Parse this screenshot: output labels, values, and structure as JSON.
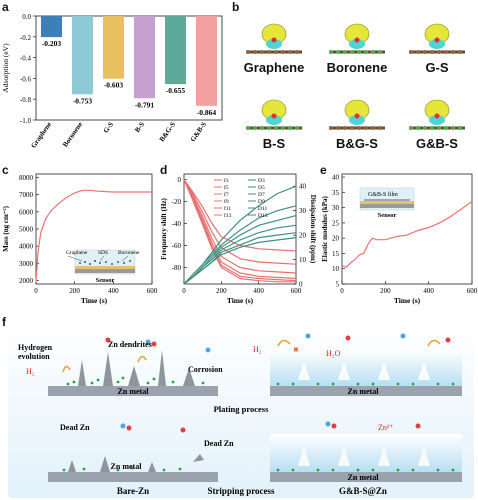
{
  "panels": {
    "a": "a",
    "b": "b",
    "c": "c",
    "d": "d",
    "e": "e",
    "f": "f"
  },
  "chart_data": [
    {
      "type": "bar",
      "categories": [
        "Graphene",
        "Boronene",
        "G-S",
        "B-S",
        "B&G-S",
        "G&B-S"
      ],
      "values": [
        -0.203,
        -0.753,
        -0.603,
        -0.791,
        -0.655,
        -0.864
      ],
      "value_labels": [
        "-0.203",
        "-0.753",
        "-0.603",
        "-0.791",
        "-0.655",
        "-0.864"
      ],
      "bar_colors": [
        "#3f7fb8",
        "#8ec9d6",
        "#e8c060",
        "#c6a0cf",
        "#5eaa98",
        "#f3a0a0"
      ],
      "ylabel": "Adsorption (eV)",
      "ylim": [
        0,
        -1.0
      ],
      "yticks": [
        "0.0",
        "-0.2",
        "-0.4",
        "-0.6",
        "-0.8",
        "-1.0"
      ]
    },
    {
      "type": "line",
      "xlabel": "Time (s)",
      "ylabel": "Mass (ng cm⁻²)",
      "xlim": [
        0,
        600
      ],
      "ylim": [
        1800,
        8200
      ],
      "xticks": [
        0,
        200,
        400,
        600
      ],
      "yticks": [
        2000,
        3000,
        4000,
        5000,
        6000,
        7000,
        8000
      ],
      "series": [
        {
          "x": [
            0,
            10,
            25,
            50,
            80,
            120,
            160,
            200,
            240,
            280,
            320,
            400,
            500,
            600
          ],
          "y": [
            1900,
            3600,
            4800,
            5600,
            6100,
            6500,
            6850,
            7100,
            7250,
            7250,
            7200,
            7150,
            7150,
            7150
          ],
          "color": "#f07070"
        }
      ]
    },
    {
      "type": "line",
      "xlabel": "Time (s)",
      "ylabel": "Frequency shift (Hz)",
      "y2label": "Dissipation shift (ppm)",
      "xlim": [
        0,
        600
      ],
      "ylim": [
        -95,
        5
      ],
      "y2lim": [
        0,
        45
      ],
      "xticks": [
        0,
        200,
        400,
        600
      ],
      "yticks": [
        0,
        -20,
        -40,
        -60,
        -80
      ],
      "y2ticks": [
        0,
        10,
        20,
        30,
        40
      ],
      "legend": [
        "f3",
        "D3",
        "f5",
        "D5",
        "f7",
        "D7",
        "f9",
        "D9",
        "f11",
        "D11",
        "f13",
        "D13"
      ],
      "series": [
        {
          "name": "f3",
          "axis": "left",
          "color": "#e87070",
          "x": [
            0,
            50,
            100,
            150,
            200,
            300,
            400,
            500,
            600
          ],
          "y": [
            0,
            -12,
            -25,
            -40,
            -52,
            -60,
            -63,
            -64,
            -65
          ]
        },
        {
          "name": "f5",
          "axis": "left",
          "color": "#e87070",
          "x": [
            0,
            50,
            100,
            150,
            200,
            300,
            400,
            500,
            600
          ],
          "y": [
            0,
            -14,
            -30,
            -48,
            -62,
            -72,
            -75,
            -76,
            -77
          ]
        },
        {
          "name": "f7",
          "axis": "left",
          "color": "#e87070",
          "x": [
            0,
            50,
            100,
            150,
            200,
            300,
            400,
            500,
            600
          ],
          "y": [
            0,
            -16,
            -34,
            -54,
            -70,
            -80,
            -83,
            -84,
            -85
          ]
        },
        {
          "name": "f9",
          "axis": "left",
          "color": "#e87070",
          "x": [
            0,
            50,
            100,
            150,
            200,
            300,
            400,
            500,
            600
          ],
          "y": [
            0,
            -18,
            -37,
            -58,
            -75,
            -85,
            -88,
            -89,
            -90
          ]
        },
        {
          "name": "f11",
          "axis": "left",
          "color": "#e87070",
          "x": [
            0,
            50,
            100,
            150,
            200,
            300,
            400,
            500,
            600
          ],
          "y": [
            0,
            -19,
            -39,
            -61,
            -78,
            -88,
            -90,
            -91,
            -92
          ]
        },
        {
          "name": "f13",
          "axis": "left",
          "color": "#e87070",
          "x": [
            0,
            50,
            100,
            150,
            200,
            300,
            400,
            500,
            600
          ],
          "y": [
            0,
            -20,
            -41,
            -63,
            -80,
            -90,
            -92,
            -93,
            -93
          ]
        },
        {
          "name": "D3",
          "axis": "right",
          "color": "#3f8f80",
          "x": [
            0,
            50,
            100,
            150,
            200,
            300,
            400,
            500,
            600
          ],
          "y": [
            0,
            4,
            8,
            13,
            18,
            26,
            32,
            37,
            40
          ]
        },
        {
          "name": "D5",
          "axis": "right",
          "color": "#3f8f80",
          "x": [
            0,
            50,
            100,
            150,
            200,
            300,
            400,
            500,
            600
          ],
          "y": [
            0,
            4,
            8,
            12,
            16,
            22,
            27,
            30,
            32
          ]
        },
        {
          "name": "D7",
          "axis": "right",
          "color": "#3f8f80",
          "x": [
            0,
            50,
            100,
            150,
            200,
            300,
            400,
            500,
            600
          ],
          "y": [
            0,
            3,
            7,
            11,
            15,
            20,
            24,
            26,
            28
          ]
        },
        {
          "name": "D9",
          "axis": "right",
          "color": "#3f8f80",
          "x": [
            0,
            50,
            100,
            150,
            200,
            300,
            400,
            500,
            600
          ],
          "y": [
            0,
            3,
            7,
            10,
            14,
            18,
            21,
            23,
            24
          ]
        },
        {
          "name": "D11",
          "axis": "right",
          "color": "#3f8f80",
          "x": [
            0,
            50,
            100,
            150,
            200,
            300,
            400,
            500,
            600
          ],
          "y": [
            0,
            3,
            6,
            9,
            13,
            16,
            19,
            20,
            21
          ]
        },
        {
          "name": "D13",
          "axis": "right",
          "color": "#3f8f80",
          "x": [
            0,
            50,
            100,
            150,
            200,
            300,
            400,
            500,
            600
          ],
          "y": [
            0,
            3,
            6,
            9,
            12,
            15,
            17,
            18,
            19
          ]
        }
      ]
    },
    {
      "type": "line",
      "xlabel": "Time (s)",
      "ylabel": "Elastic modulus (kPa)",
      "xlim": [
        0,
        600
      ],
      "ylim": [
        5,
        41
      ],
      "xticks": [
        0,
        200,
        400,
        600
      ],
      "yticks": [
        5,
        10,
        15,
        20,
        25,
        30,
        35,
        40
      ],
      "series": [
        {
          "x": [
            0,
            20,
            40,
            60,
            80,
            100,
            120,
            140,
            160,
            200,
            250,
            300,
            350,
            400,
            450,
            500,
            550,
            600
          ],
          "y": [
            11,
            10.5,
            12,
            13,
            14.5,
            15,
            18,
            20,
            19.5,
            19.5,
            20.5,
            21,
            22.5,
            23.5,
            25,
            27,
            29.5,
            32
          ],
          "color": "#f07070"
        }
      ]
    }
  ],
  "molecules": [
    "Graphene",
    "Boronene",
    "G-S",
    "B-S",
    "B&G-S",
    "G&B-S"
  ],
  "insets": {
    "c": {
      "labels": [
        "Graphene",
        "SDS",
        "Boronene"
      ],
      "sensor": "Sensor"
    },
    "e": {
      "film": "G&B-S film",
      "sensor": "Sensor"
    }
  },
  "schematic": {
    "hydrogen": "Hydrogen",
    "evolution": "evolution",
    "zn_dendrites": "Zn dendrites",
    "corrosion": "Corrosion",
    "h2_left": "H₂",
    "h2_right": "H₂",
    "h2o": "H₂O",
    "zn_metal": "Zn metal",
    "plating": "Plating process",
    "stripping": "Stripping process",
    "dead_zn_1": "Dead Zn",
    "dead_zn_2": "Dead Zn",
    "zn2": "Zn²⁺",
    "bare_zn": "Bare-Zn",
    "gbs_zn": "G&B-S@Zn"
  }
}
